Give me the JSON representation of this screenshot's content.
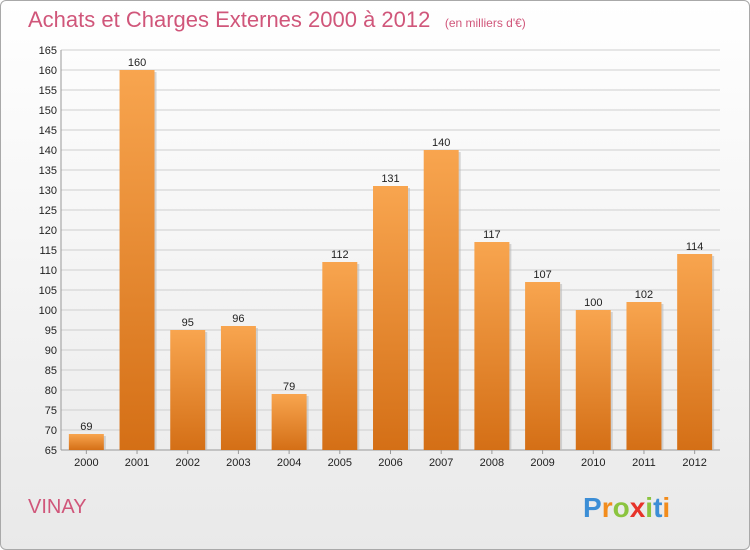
{
  "chart_data": {
    "type": "bar",
    "title": "Achats et Charges Externes 2000 à 2012",
    "subtitle": "(en milliers d'€)",
    "categories": [
      "2000",
      "2001",
      "2002",
      "2003",
      "2004",
      "2005",
      "2006",
      "2007",
      "2008",
      "2009",
      "2010",
      "2011",
      "2012"
    ],
    "values": [
      69,
      160,
      95,
      96,
      79,
      112,
      131,
      140,
      117,
      107,
      100,
      102,
      114
    ],
    "ylim": [
      65,
      165
    ],
    "yticks": [
      65,
      70,
      75,
      80,
      85,
      90,
      95,
      100,
      105,
      110,
      115,
      120,
      125,
      130,
      135,
      140,
      145,
      150,
      155,
      160,
      165
    ],
    "grid": true,
    "bar_color_light": "#f8a54f",
    "bar_color_dark": "#d46f16",
    "title_color": "#d0567a"
  },
  "commune": "VINAY",
  "brand": {
    "letters": [
      "P",
      "r",
      "o",
      "x",
      "i",
      "t",
      "i"
    ],
    "colors": [
      "#3c8ed6",
      "#f28c1c",
      "#8bc43f",
      "#e7332a",
      "#8bc43f",
      "#3c8ed6",
      "#f28c1c"
    ]
  }
}
